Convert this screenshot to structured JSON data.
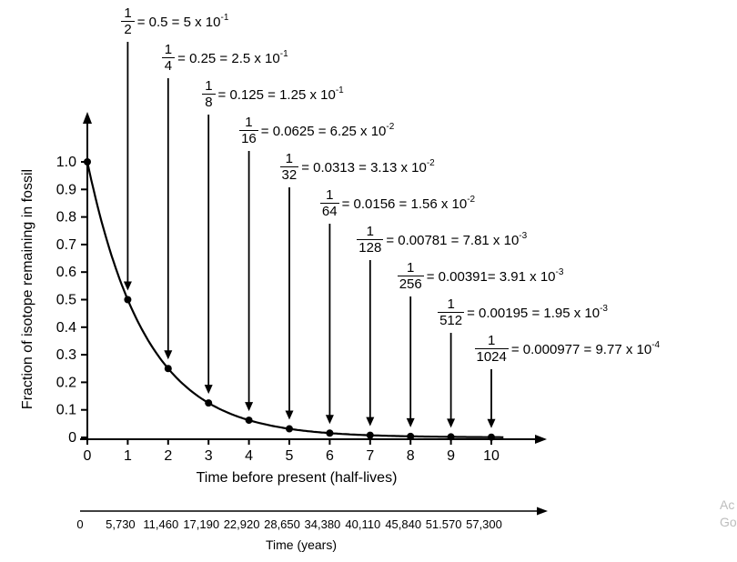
{
  "colors": {
    "ink": "#000000",
    "watermark": "#bdbdbd"
  },
  "watermark": {
    "line1": "Ac",
    "line2": "Go"
  },
  "chart_data": {
    "type": "line",
    "title": "",
    "xlabel": "Time before present (half-lives)",
    "ylabel": "Fraction of isotope remaining in fossil",
    "x2label": "Time (years)",
    "x": [
      0,
      1,
      2,
      3,
      4,
      5,
      6,
      7,
      8,
      9,
      10
    ],
    "y": [
      1,
      0.5,
      0.25,
      0.125,
      0.0625,
      0.03125,
      0.015625,
      0.0078125,
      0.00390625,
      0.001953125,
      0.0009765625
    ],
    "xlim": [
      0,
      10
    ],
    "ylim": [
      0,
      1.0
    ],
    "grid": false,
    "x_ticks": [
      "0",
      "1",
      "2",
      "3",
      "4",
      "5",
      "6",
      "7",
      "8",
      "9",
      "10"
    ],
    "y_ticks": [
      "1.0",
      "0.9",
      "0.8",
      "0.7",
      "0.6",
      "0.5",
      "0.4",
      "0.3",
      "0.2",
      "0.1",
      "0"
    ],
    "years_ticks": [
      "0",
      "5,730",
      "11,460",
      "17,190",
      "22,920",
      "28,650",
      "34,380",
      "40,110",
      "45,840",
      "51.570",
      "57,300"
    ],
    "annotations": [
      {
        "x": 1,
        "num": "1",
        "den": "2",
        "equals": "= 0.5 = 5 x 10",
        "exp": "-1"
      },
      {
        "x": 2,
        "num": "1",
        "den": "4",
        "equals": "= 0.25 = 2.5 x 10",
        "exp": "-1"
      },
      {
        "x": 3,
        "num": "1",
        "den": "8",
        "equals": "= 0.125 = 1.25 x 10",
        "exp": "-1"
      },
      {
        "x": 4,
        "num": "1",
        "den": "16",
        "equals": "= 0.0625 = 6.25 x 10",
        "exp": "-2"
      },
      {
        "x": 5,
        "num": "1",
        "den": "32",
        "equals": "= 0.0313 = 3.13 x 10",
        "exp": "-2"
      },
      {
        "x": 6,
        "num": "1",
        "den": "64",
        "equals": "= 0.0156 = 1.56 x 10",
        "exp": "-2"
      },
      {
        "x": 7,
        "num": "1",
        "den": "128",
        "equals": "= 0.00781 = 7.81 x 10",
        "exp": "-3"
      },
      {
        "x": 8,
        "num": "1",
        "den": "256",
        "equals": "= 0.00391= 3.91 x 10",
        "exp": "-3"
      },
      {
        "x": 9,
        "num": "1",
        "den": "512",
        "equals": "= 0.00195 = 1.95 x 10",
        "exp": "-3"
      },
      {
        "x": 10,
        "num": "1",
        "den": "1024",
        "equals": "= 0.000977 = 9.77 x 10",
        "exp": "-4"
      }
    ]
  }
}
